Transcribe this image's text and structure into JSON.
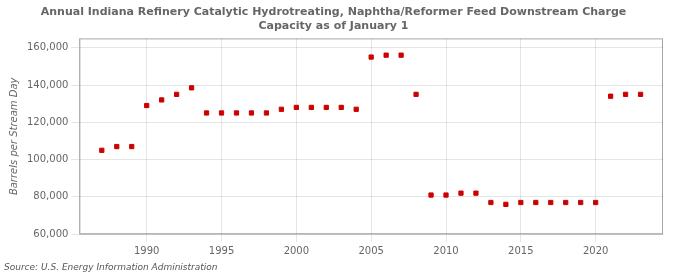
{
  "chart_data": {
    "type": "scatter",
    "title": "Annual Indiana Refinery Catalytic Hydrotreating, Naphtha/Reformer Feed Downstream Charge\nCapacity as of January 1",
    "ylabel": "Barrels per Stream Day",
    "annotations": [
      "Source: U.S. Energy Information Administration"
    ],
    "x": [
      1987,
      1988,
      1989,
      1990,
      1991,
      1992,
      1993,
      1994,
      1995,
      1996,
      1997,
      1998,
      1999,
      2000,
      2001,
      2002,
      2003,
      2004,
      2005,
      2006,
      2007,
      2008,
      2009,
      2010,
      2011,
      2012,
      2013,
      2014,
      2015,
      2016,
      2017,
      2018,
      2019,
      2020,
      2021,
      2022,
      2023
    ],
    "values": [
      105000,
      107000,
      107000,
      129000,
      132000,
      135000,
      138500,
      125000,
      125000,
      125000,
      125000,
      125000,
      127000,
      128000,
      128000,
      128000,
      128000,
      127000,
      155000,
      156000,
      156000,
      135000,
      81000,
      81000,
      82000,
      82000,
      77000,
      76000,
      77000,
      77000,
      77000,
      77000,
      77000,
      77000,
      134000,
      135000,
      135000
    ],
    "color": "#cc0000",
    "marker": "square",
    "xlim": [
      1985.5,
      2024.5
    ],
    "xticks": [
      1990,
      1995,
      2000,
      2005,
      2010,
      2015,
      2020
    ],
    "ylim": [
      60000,
      165000
    ],
    "yticks": [
      {
        "value": 60000,
        "label": "60,000"
      },
      {
        "value": 80000,
        "label": "80,000"
      },
      {
        "value": 100000,
        "label": "100,000"
      },
      {
        "value": 120000,
        "label": "120,000"
      },
      {
        "value": 140000,
        "label": "140,000"
      },
      {
        "value": 160000,
        "label": "160,000"
      }
    ],
    "grid": true,
    "legend": false
  }
}
